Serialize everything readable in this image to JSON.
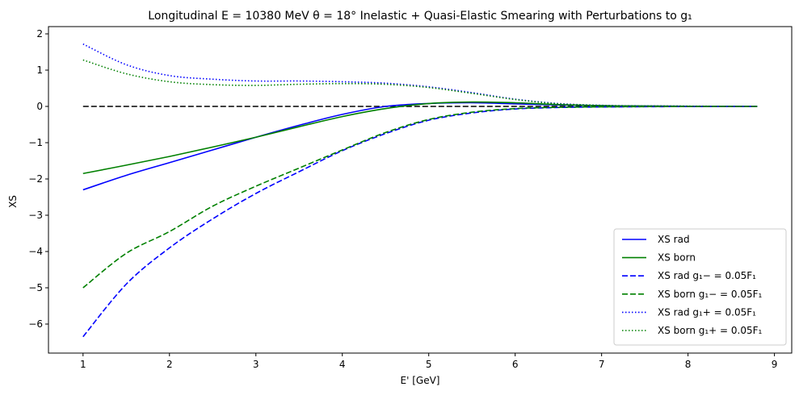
{
  "chart_data": {
    "type": "line",
    "title": "Longitudinal E = 10380 MeV θ = 18° Inelastic + Quasi-Elastic Smearing  with Perturbations to g₁",
    "xlabel": "E' [GeV]",
    "ylabel": "XS",
    "xlim": [
      0.6,
      9.2
    ],
    "ylim": [
      -6.8,
      2.2
    ],
    "xticks": [
      1,
      2,
      3,
      4,
      5,
      6,
      7,
      8,
      9
    ],
    "yticks": [
      -6,
      -5,
      -4,
      -3,
      -2,
      -1,
      0,
      1,
      2
    ],
    "grid": false,
    "legend_position": "lower-right",
    "reference_line": {
      "y": 0,
      "x_range": [
        1,
        8.8
      ],
      "color": "#000000",
      "style": "dashed"
    },
    "x": [
      1.0,
      1.5,
      2.0,
      2.5,
      3.0,
      3.5,
      4.0,
      4.5,
      5.0,
      5.5,
      6.0,
      6.5,
      7.0,
      7.5,
      8.0,
      8.5,
      8.8
    ],
    "series": [
      {
        "name": "XS rad",
        "color": "#0000ff",
        "style": "solid",
        "values": [
          -2.3,
          -1.9,
          -1.55,
          -1.2,
          -0.85,
          -0.52,
          -0.22,
          0.0,
          0.08,
          0.1,
          0.07,
          0.04,
          0.02,
          0.01,
          0.005,
          0.002,
          0.0
        ]
      },
      {
        "name": "XS born",
        "color": "#008000",
        "style": "solid",
        "values": [
          -1.85,
          -1.62,
          -1.38,
          -1.12,
          -0.85,
          -0.56,
          -0.28,
          -0.06,
          0.08,
          0.12,
          0.1,
          0.05,
          0.02,
          0.01,
          0.005,
          0.002,
          0.0
        ]
      },
      {
        "name": "XS rad g₁− = 0.05F₁",
        "color": "#0000ff",
        "style": "dashed",
        "values": [
          -6.35,
          -4.9,
          -3.9,
          -3.1,
          -2.4,
          -1.8,
          -1.22,
          -0.75,
          -0.38,
          -0.18,
          -0.07,
          -0.03,
          -0.015,
          -0.008,
          -0.004,
          -0.002,
          -0.001
        ]
      },
      {
        "name": "XS born g₁− = 0.05F₁",
        "color": "#008000",
        "style": "dashed",
        "values": [
          -5.0,
          -4.05,
          -3.45,
          -2.75,
          -2.2,
          -1.7,
          -1.2,
          -0.72,
          -0.36,
          -0.16,
          -0.06,
          -0.025,
          -0.012,
          -0.006,
          -0.003,
          -0.002,
          -0.001
        ]
      },
      {
        "name": "XS rad g₁+ = 0.05F₁",
        "color": "#0000ff",
        "style": "dotted",
        "values": [
          1.72,
          1.15,
          0.85,
          0.75,
          0.7,
          0.7,
          0.68,
          0.64,
          0.54,
          0.38,
          0.2,
          0.08,
          0.03,
          0.015,
          0.008,
          0.004,
          0.002
        ]
      },
      {
        "name": "XS born g₁+ = 0.05F₁",
        "color": "#008000",
        "style": "dotted",
        "values": [
          1.28,
          0.9,
          0.68,
          0.6,
          0.58,
          0.61,
          0.63,
          0.61,
          0.52,
          0.36,
          0.19,
          0.07,
          0.025,
          0.012,
          0.006,
          0.003,
          0.002
        ]
      }
    ]
  }
}
